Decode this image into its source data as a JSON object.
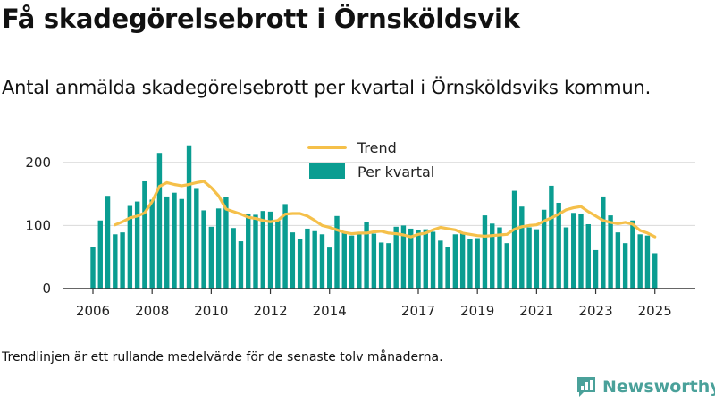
{
  "header": {
    "title": "Få skadegörelsebrott i Örnsköldsvik",
    "subtitle": "Antal anmälda skadegörelsebrott per kvartal i Örnsköldsviks kommun."
  },
  "footer": {
    "note": "Trendlinjen är ett rullande medelvärde för de senaste tolv månaderna.",
    "brand": "Newsworthy"
  },
  "colors": {
    "bars": "#0a9d91",
    "trend": "#f5c04a",
    "grid": "#d9d9d9",
    "axis": "#333333",
    "brand": "#4aa19a"
  },
  "chart_data": {
    "type": "bar",
    "title": "Få skadegörelsebrott i Örnsköldsvik",
    "subtitle": "Antal anmälda skadegörelsebrott per kvartal i Örnsköldsviks kommun.",
    "x_ticks": [
      "2006",
      "2008",
      "2010",
      "2012",
      "2014",
      "2017",
      "2019",
      "2021",
      "2023",
      "2025"
    ],
    "x_range": [
      2006.0,
      2025.25
    ],
    "y_ticks": [
      0,
      100,
      200
    ],
    "ylim": [
      0,
      230
    ],
    "grid": true,
    "legend_position": "top-center",
    "x": [
      2006.0,
      2006.25,
      2006.5,
      2006.75,
      2007.0,
      2007.25,
      2007.5,
      2007.75,
      2008.0,
      2008.25,
      2008.5,
      2008.75,
      2009.0,
      2009.25,
      2009.5,
      2009.75,
      2010.0,
      2010.25,
      2010.5,
      2010.75,
      2011.0,
      2011.25,
      2011.5,
      2011.75,
      2012.0,
      2012.25,
      2012.5,
      2012.75,
      2013.0,
      2013.25,
      2013.5,
      2013.75,
      2014.0,
      2014.25,
      2014.5,
      2014.75,
      2015.0,
      2015.25,
      2015.5,
      2015.75,
      2016.0,
      2016.25,
      2016.5,
      2016.75,
      2017.0,
      2017.25,
      2017.5,
      2017.75,
      2018.0,
      2018.25,
      2018.5,
      2018.75,
      2019.0,
      2019.25,
      2019.5,
      2019.75,
      2020.0,
      2020.25,
      2020.5,
      2020.75,
      2021.0,
      2021.25,
      2021.5,
      2021.75,
      2022.0,
      2022.25,
      2022.5,
      2022.75,
      2023.0,
      2023.25,
      2023.5,
      2023.75,
      2024.0,
      2024.25,
      2024.5,
      2024.75,
      2025.0
    ],
    "series": [
      {
        "name": "Per kvartal",
        "type": "bar",
        "values": [
          66,
          108,
          147,
          86,
          89,
          131,
          138,
          170,
          141,
          215,
          146,
          152,
          142,
          227,
          158,
          124,
          98,
          127,
          145,
          96,
          75,
          119,
          117,
          123,
          122,
          108,
          134,
          89,
          78,
          95,
          91,
          86,
          65,
          115,
          88,
          84,
          88,
          105,
          87,
          73,
          72,
          98,
          100,
          95,
          93,
          94,
          90,
          76,
          66,
          86,
          88,
          79,
          80,
          116,
          103,
          97,
          72,
          155,
          130,
          97,
          94,
          125,
          163,
          136,
          97,
          120,
          119,
          102,
          61,
          146,
          116,
          89,
          72,
          108,
          86,
          84,
          56
        ]
      },
      {
        "name": "Trend",
        "type": "line",
        "x": [
          2006.75,
          2007.0,
          2007.25,
          2007.5,
          2007.75,
          2008.0,
          2008.25,
          2008.5,
          2008.75,
          2009.0,
          2009.25,
          2009.5,
          2009.75,
          2010.0,
          2010.25,
          2010.5,
          2010.75,
          2011.0,
          2011.25,
          2011.5,
          2011.75,
          2012.0,
          2012.25,
          2012.5,
          2012.75,
          2013.0,
          2013.25,
          2013.5,
          2013.75,
          2014.0,
          2014.25,
          2014.5,
          2014.75,
          2015.0,
          2015.25,
          2015.5,
          2015.75,
          2016.0,
          2016.25,
          2016.5,
          2016.75,
          2017.0,
          2017.25,
          2017.5,
          2017.75,
          2018.0,
          2018.25,
          2018.5,
          2018.75,
          2019.0,
          2019.25,
          2019.5,
          2019.75,
          2020.0,
          2020.25,
          2020.5,
          2020.75,
          2021.0,
          2021.25,
          2021.5,
          2021.75,
          2022.0,
          2022.25,
          2022.5,
          2022.75,
          2023.0,
          2023.25,
          2023.5,
          2023.75,
          2024.0,
          2024.25,
          2024.5,
          2024.75,
          2025.0
        ],
        "values": [
          101,
          106,
          112,
          115,
          120,
          138,
          162,
          168,
          165,
          163,
          165,
          168,
          170,
          160,
          147,
          126,
          122,
          118,
          113,
          111,
          108,
          106,
          108,
          118,
          119,
          119,
          115,
          108,
          100,
          97,
          93,
          89,
          87,
          88,
          88,
          90,
          91,
          88,
          87,
          85,
          82,
          86,
          88,
          93,
          97,
          95,
          93,
          88,
          86,
          84,
          83,
          84,
          85,
          86,
          94,
          98,
          100,
          101,
          107,
          112,
          118,
          125,
          128,
          130,
          122,
          115,
          108,
          105,
          103,
          105,
          102,
          92,
          88,
          82
        ]
      }
    ]
  }
}
